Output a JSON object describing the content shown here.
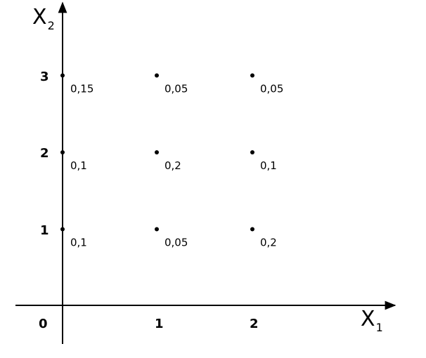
{
  "chart_data": {
    "type": "scatter",
    "x_label": {
      "main": "X",
      "sub": "1"
    },
    "y_label": {
      "main": "X",
      "sub": "2"
    },
    "origin_label": "0",
    "x_ticks": [
      "1",
      "2"
    ],
    "y_ticks": [
      "1",
      "2",
      "3"
    ],
    "points": [
      {
        "x": 0,
        "y": 3,
        "label": "0,15"
      },
      {
        "x": 1,
        "y": 3,
        "label": "0,05"
      },
      {
        "x": 2,
        "y": 3,
        "label": "0,05"
      },
      {
        "x": 0,
        "y": 2,
        "label": "0,1"
      },
      {
        "x": 1,
        "y": 2,
        "label": "0,2"
      },
      {
        "x": 2,
        "y": 2,
        "label": "0,1"
      },
      {
        "x": 0,
        "y": 1,
        "label": "0,1"
      },
      {
        "x": 1,
        "y": 1,
        "label": "0,05"
      },
      {
        "x": 2,
        "y": 1,
        "label": "0,2"
      }
    ],
    "colors": {
      "ink": "#000000",
      "background": "#ffffff"
    }
  }
}
